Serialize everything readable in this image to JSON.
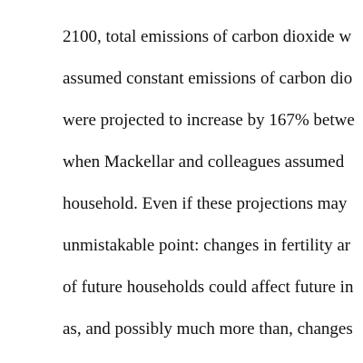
{
  "document": {
    "lines": [
      "2100, total emissions of carbon dioxide w",
      "assumed constant emissions of carbon dio",
      "were projected to increase by 167% betwe",
      "when Mackellar and colleagues assumed",
      "household. Even if these projections may",
      "unmistakable point: changes in fertility ar",
      "of future households could affect future in",
      "as, and possibly much more than, changes"
    ]
  }
}
